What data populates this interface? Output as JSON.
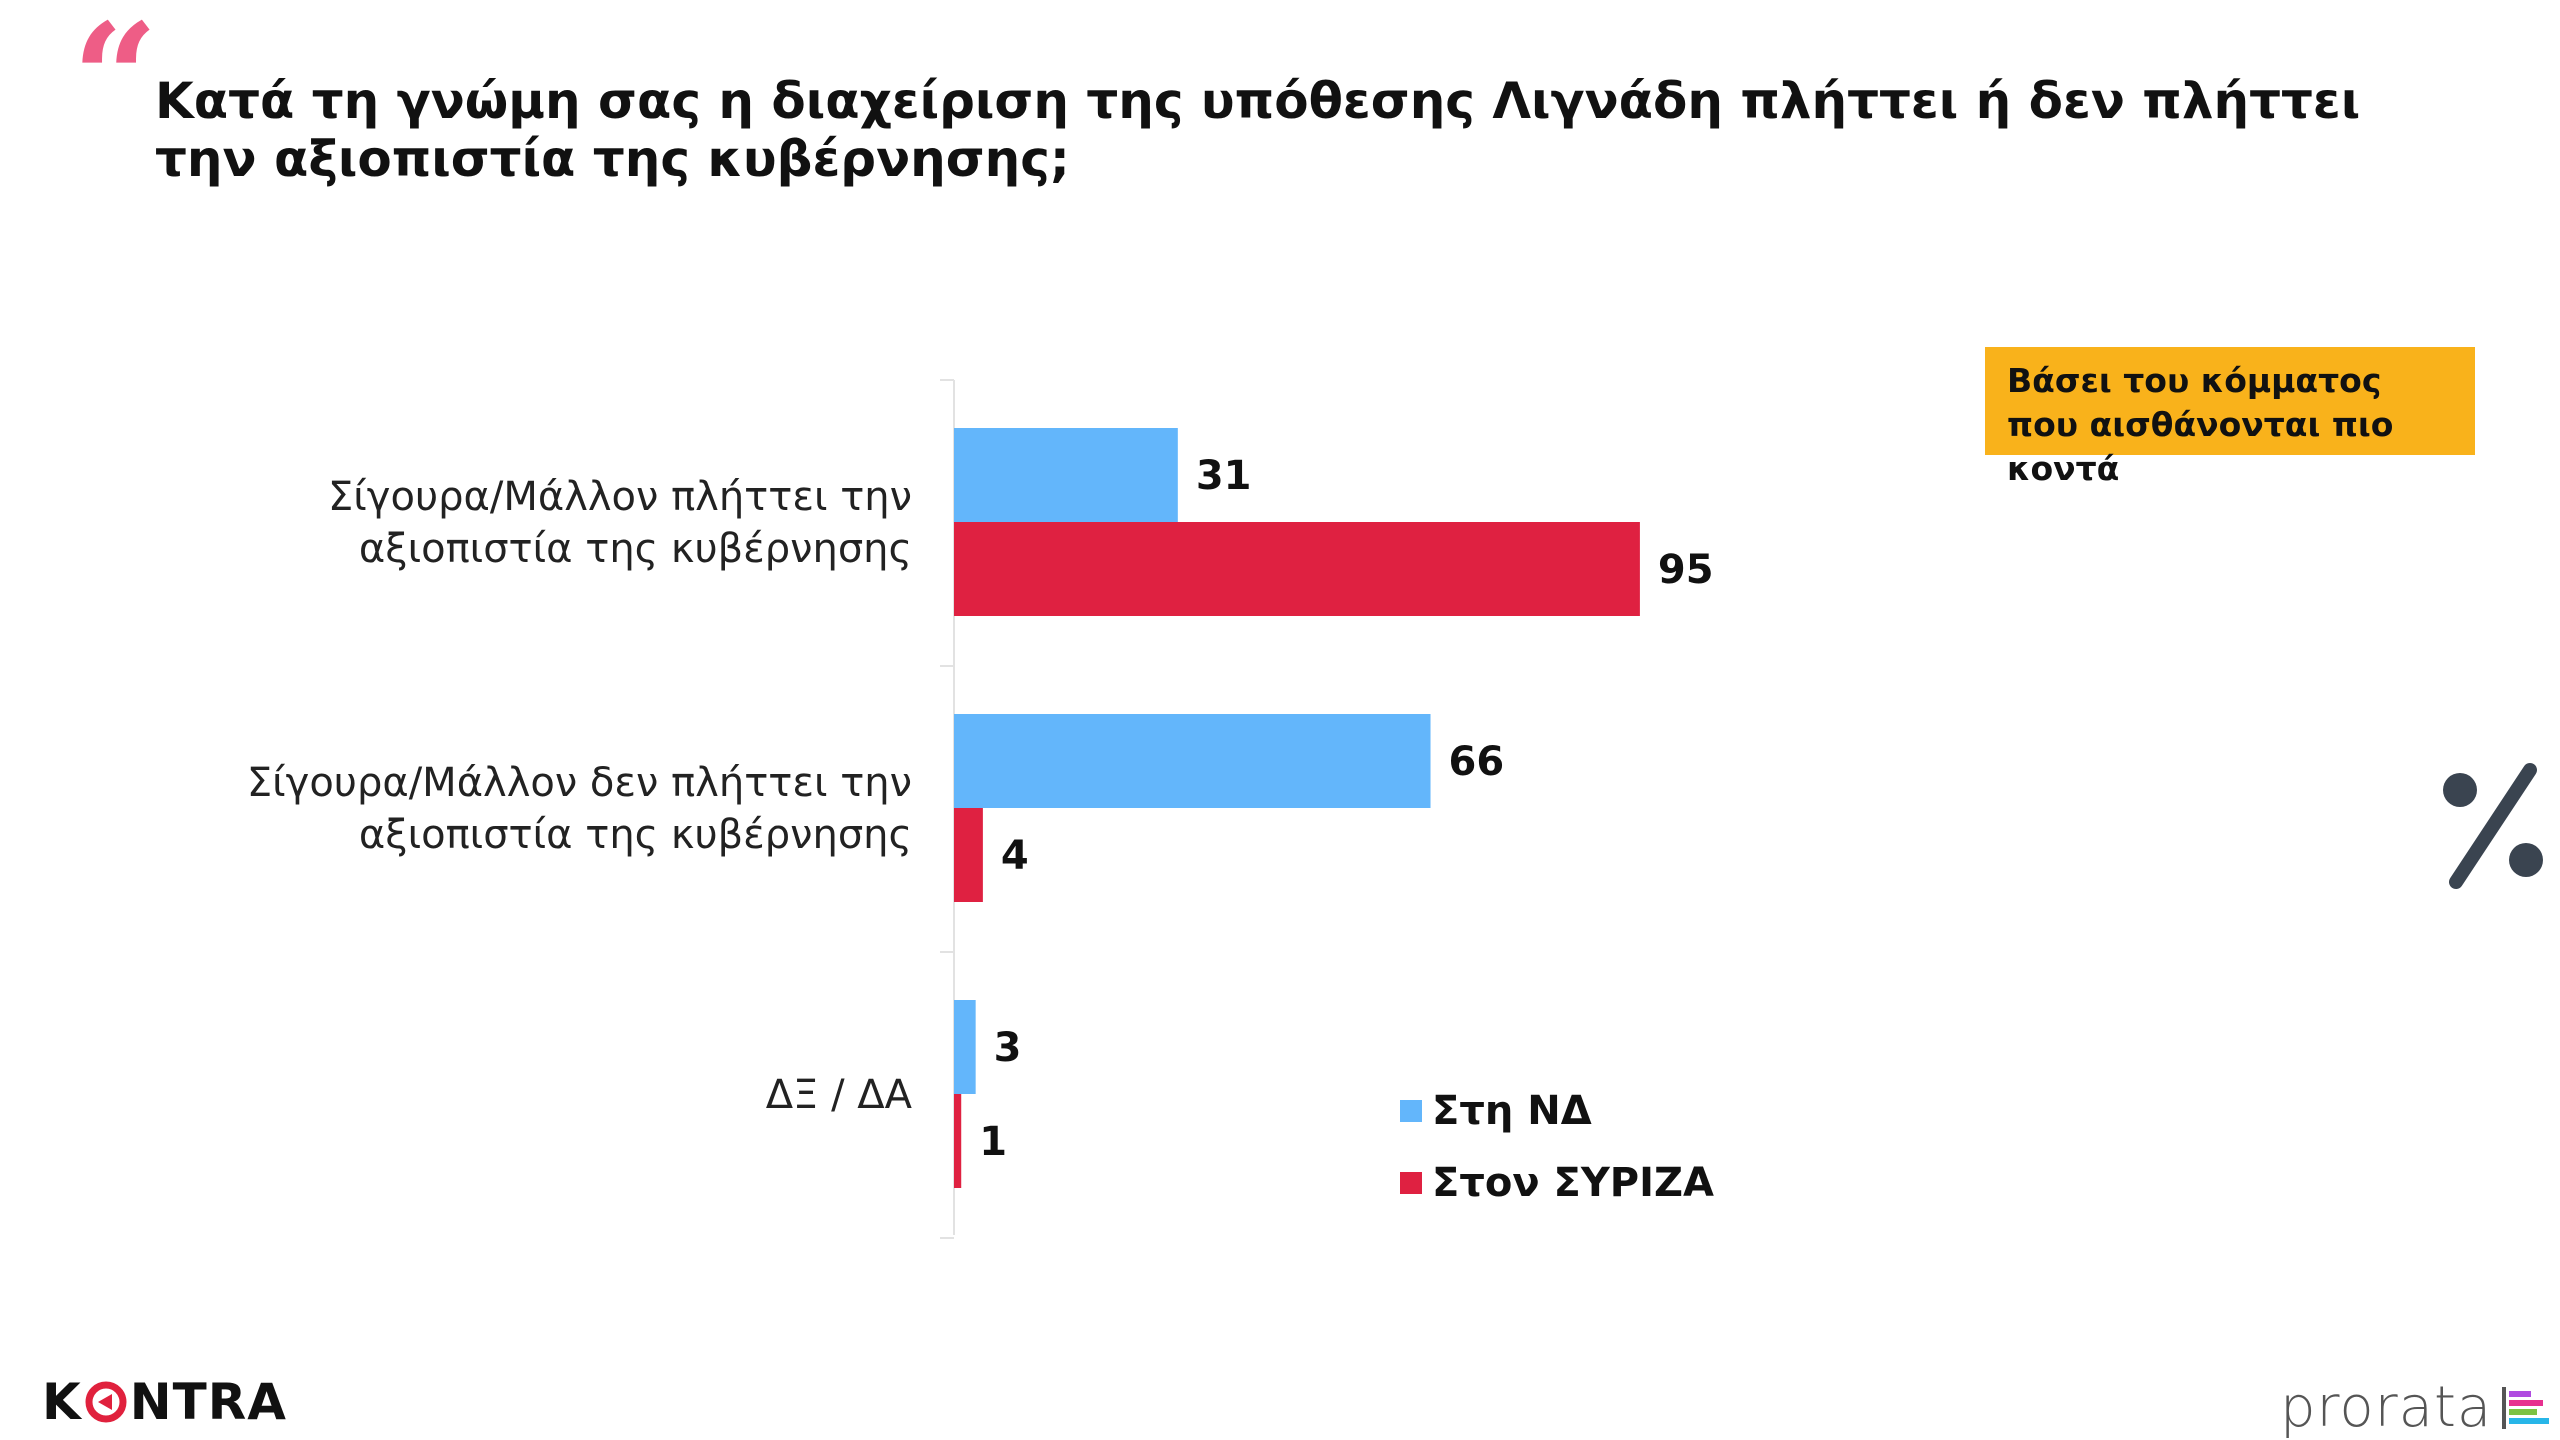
{
  "title": "Κατά τη γνώμη σας η διαχείριση της υπόθεσης Λιγνάδη πλήττει ή δεν πλήττει την αξιοπιστία της κυβέρνησης;",
  "badge": "Βάσει του κόμματος που αισθάνονται πιο κοντά",
  "logos": {
    "left": "KONTRA",
    "right": "prorata"
  },
  "icons": {
    "quote": "quote-icon",
    "percent": "percent-icon"
  },
  "colors": {
    "nd": "#63b6fb",
    "syriza": "#df2141",
    "badge": "#f9b21b",
    "quote": "#ee5d86",
    "percent": "#3a4450"
  },
  "chart_data": {
    "type": "bar",
    "orientation": "horizontal",
    "categories": [
      [
        "Σίγουρα/Μάλλον πλήττει την",
        "αξιοπιστία της κυβέρνησης"
      ],
      [
        "Σίγουρα/Μάλλον δεν πλήττει την",
        "αξιοπιστία της κυβέρνησης"
      ],
      [
        "ΔΞ / ΔΑ"
      ]
    ],
    "series": [
      {
        "name": "Στη ΝΔ",
        "values": [
          31,
          66,
          3
        ],
        "color": "#63b6fb"
      },
      {
        "name": "Στον ΣΥΡΙΖΑ",
        "values": [
          95,
          4,
          1
        ],
        "color": "#df2141"
      }
    ],
    "xlim": [
      0,
      100
    ],
    "unit": "%",
    "legend_position": "bottom-right",
    "grid": false
  }
}
